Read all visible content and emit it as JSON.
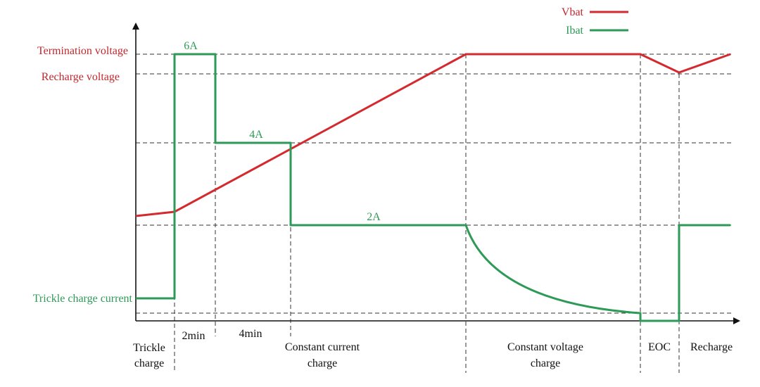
{
  "legend": {
    "vbat": "Vbat",
    "ibat": "Ibat"
  },
  "y_labels": {
    "termination_voltage": "Termination voltage",
    "recharge_voltage": "Recharge voltage",
    "trickle_charge_current": "Trickle charge current"
  },
  "current_labels": {
    "six_amp": "6A",
    "four_amp": "4A",
    "two_amp": "2A"
  },
  "durations": {
    "two_min": "2min",
    "four_min": "4min"
  },
  "phases": {
    "trickle_line1": "Trickle",
    "trickle_line2": "charge",
    "cc_line1": "Constant current",
    "cc_line2": "charge",
    "cv_line1": "Constant voltage",
    "cv_line2": "charge",
    "eoc": "EOC",
    "recharge": "Recharge"
  },
  "colors": {
    "vbat": "#d42a2f",
    "ibat": "#2e9a57",
    "axis": "#111111"
  }
}
